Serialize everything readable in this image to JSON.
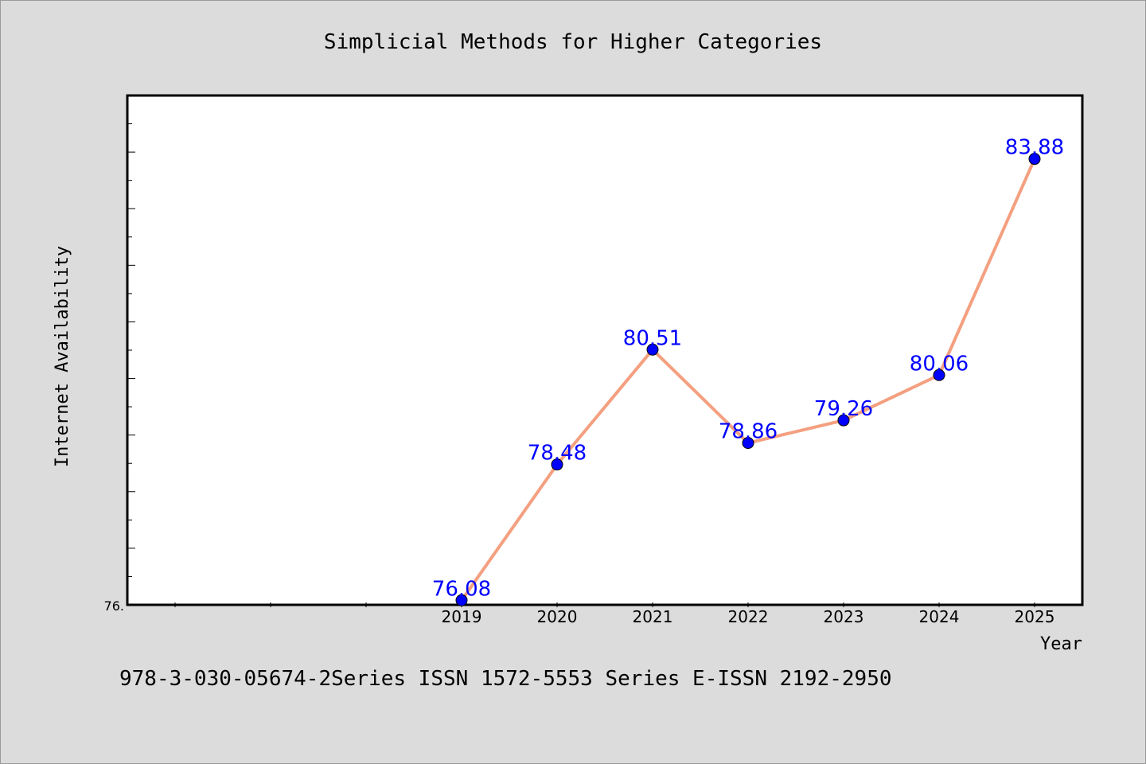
{
  "chart_data": {
    "type": "line",
    "title": "Simplicial Methods for Higher Categories",
    "xlabel": "Year",
    "ylabel": "Internet Availability",
    "categories": [
      "2019",
      "2020",
      "2021",
      "2022",
      "2023",
      "2024",
      "2025"
    ],
    "series": [
      {
        "values": [
          76.08,
          78.48,
          80.51,
          78.86,
          79.26,
          80.06,
          83.88
        ],
        "labels": [
          "76.08",
          "78.48",
          "80.51",
          "78.86",
          "79.26",
          "80.06",
          "83.88"
        ]
      }
    ],
    "ytick_labels": [
      "76."
    ],
    "ylim": [
      76.0,
      85.0
    ],
    "grid": false,
    "line_color": "#f4a080",
    "marker_color": "#0000ff",
    "label_color": "#0000ff"
  },
  "footer": "978-3-030-05674-2Series ISSN 1572-5553 Series E-ISSN 2192-2950"
}
